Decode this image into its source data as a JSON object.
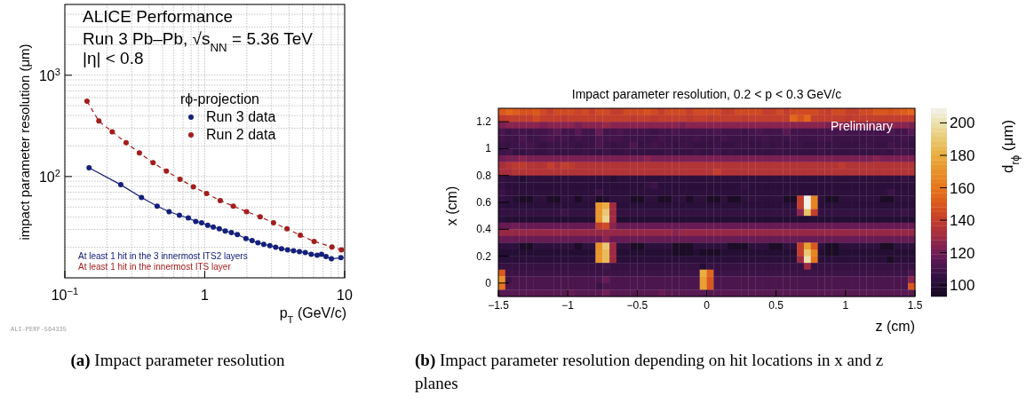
{
  "chart_data": [
    {
      "type": "line",
      "xlabel": "p$_{T}$ (GeV/c)",
      "ylabel": "impact parameter resolution (μm)",
      "legend_title": "rϕ-projection",
      "legend": "top right",
      "log": "xy",
      "grid": true,
      "marker": "circle",
      "xlim": [
        0.1,
        10
      ],
      "xticks": [
        {
          "value": 0.1,
          "label": "10$^{−1}$"
        },
        1,
        10
      ],
      "ylim": [
        10,
        5000
      ],
      "yticks": [
        {
          "value": 100,
          "label": "10$^{2}$"
        },
        {
          "value": 1000,
          "label": "10$^{3}$"
        }
      ],
      "series": [
        {
          "name": "Run 3 data",
          "color": "#14207a",
          "line_style": "solid",
          "x": [
            0.149,
            0.251,
            0.353,
            0.457,
            0.556,
            0.659,
            0.763,
            0.862,
            0.95,
            1.05,
            1.15,
            1.27,
            1.4,
            1.55,
            1.71,
            1.97,
            2.18,
            2.4,
            2.64,
            2.92,
            3.21,
            3.54,
            3.91,
            4.31,
            4.75,
            5.23,
            5.77,
            6.36,
            6.84,
            7.36,
            8.04,
            9.4
          ],
          "values": [
            122,
            83,
            62,
            51,
            45,
            41.5,
            39,
            36,
            35,
            33,
            31.7,
            30.5,
            29,
            28,
            26.7,
            24.4,
            23.3,
            22.2,
            21.4,
            20.8,
            20.1,
            19.4,
            18.9,
            18.5,
            18.1,
            17.8,
            17.1,
            16.7,
            17.1,
            16.2,
            15.4,
            15.8
          ]
        },
        {
          "name": "Run 2 data",
          "color": "#a31d1d",
          "line_style": "dashed",
          "x": [
            0.144,
            0.175,
            0.218,
            0.274,
            0.341,
            0.427,
            0.532,
            0.666,
            0.829,
            1.03,
            1.29,
            1.6,
            1.99,
            2.49,
            3.1,
            3.87,
            4.82,
            6.05,
            8.11,
            9.48
          ],
          "values": [
            553,
            353,
            277,
            216,
            171,
            137,
            113,
            94,
            79,
            68,
            58,
            51,
            45,
            40,
            35,
            30.5,
            26.3,
            22.9,
            20.2,
            18.9
          ]
        }
      ],
      "annotations": [
        "ALICE Performance",
        "Run 3 Pb–Pb, √s$_{NN}$ = 5.36 TeV",
        "|η| < 0.8",
        "At least 1 hit in the 3 innermost ITS2 layers",
        "At least 1 hit in the innermost ITS layer",
        "ALI-PERF-564335",
        "(a) Impact parameter resolution"
      ]
    },
    {
      "type": "heatmap",
      "title": "Impact parameter resolution, 0.2 < p < 0.3 GeV/c",
      "xlabel": "z (cm)",
      "ylabel": "x (cm)",
      "clabel": "d$_{rϕ}$ (μm)",
      "x": [
        -1.475,
        -1.425,
        -1.375,
        -1.325,
        -1.275,
        -1.225,
        -1.175,
        -1.125,
        -1.075,
        -1.025,
        -0.975,
        -0.925,
        -0.875,
        -0.825,
        -0.775,
        -0.725,
        -0.675,
        -0.625,
        -0.575,
        -0.525,
        -0.475,
        -0.425,
        -0.375,
        -0.325,
        -0.275,
        -0.225,
        -0.175,
        -0.125,
        -0.075,
        -0.025,
        0.025,
        0.075,
        0.125,
        0.175,
        0.225,
        0.275,
        0.325,
        0.375,
        0.425,
        0.475,
        0.525,
        0.575,
        0.625,
        0.675,
        0.725,
        0.775,
        0.825,
        0.875,
        0.925,
        0.975,
        1.025,
        1.075,
        1.125,
        1.175,
        1.225,
        1.275,
        1.325,
        1.375,
        1.425,
        1.475
      ],
      "y": [
        1.275,
        1.225,
        1.175,
        1.125,
        1.075,
        1.025,
        0.975,
        0.925,
        0.875,
        0.825,
        0.775,
        0.725,
        0.675,
        0.625,
        0.575,
        0.525,
        0.475,
        0.425,
        0.375,
        0.325,
        0.275,
        0.225,
        0.175,
        0.125,
        0.075,
        0.025,
        -0.025,
        -0.075
      ],
      "xlim": [
        -1.5,
        1.5
      ],
      "xticks": [
        {
          "value": -1.5,
          "label": "−1.5"
        },
        {
          "value": -1,
          "label": "−1"
        },
        {
          "value": -0.5,
          "label": "−0.5"
        },
        0,
        0.5,
        1,
        1.5
      ],
      "ylim": [
        -0.1,
        1.3
      ],
      "yticks": [
        0,
        0.2,
        0.4,
        0.6,
        0.8,
        1,
        1.2
      ],
      "clim": [
        93,
        209
      ],
      "cticks": [
        100,
        120,
        140,
        160,
        180,
        200
      ],
      "cells": [
        [
          150,
          155,
          152,
          148,
          148,
          150,
          145,
          140,
          145,
          145,
          145,
          142,
          145,
          140,
          145,
          145,
          140,
          140,
          145,
          145,
          145,
          148,
          145,
          140,
          145,
          145,
          145,
          140,
          145,
          145,
          145,
          145,
          140,
          140,
          145,
          145,
          145,
          145,
          140,
          140,
          145,
          140,
          145,
          145,
          145,
          145,
          142,
          140,
          145,
          145,
          140,
          140,
          145,
          145,
          150,
          150,
          148,
          150,
          152,
          155
        ],
        [
          138,
          140,
          140,
          140,
          140,
          145,
          140,
          140,
          140,
          138,
          140,
          140,
          140,
          140,
          140,
          140,
          140,
          140,
          140,
          138,
          140,
          140,
          138,
          140,
          140,
          140,
          140,
          138,
          140,
          140,
          138,
          140,
          140,
          140,
          140,
          138,
          140,
          140,
          140,
          140,
          140,
          140,
          155,
          148,
          155,
          140,
          140,
          140,
          140,
          140,
          138,
          140,
          140,
          140,
          140,
          140,
          140,
          140,
          140,
          140
        ],
        [
          122,
          125,
          125,
          125,
          125,
          125,
          122,
          125,
          125,
          125,
          125,
          122,
          125,
          125,
          125,
          128,
          125,
          125,
          125,
          125,
          125,
          125,
          125,
          125,
          125,
          125,
          122,
          125,
          125,
          125,
          125,
          125,
          125,
          125,
          125,
          125,
          125,
          125,
          125,
          125,
          125,
          125,
          125,
          125,
          125,
          125,
          125,
          122,
          125,
          125,
          125,
          125,
          125,
          125,
          125,
          125,
          125,
          125,
          125,
          122
        ],
        [
          112,
          108,
          110,
          110,
          108,
          110,
          110,
          112,
          115,
          110,
          110,
          115,
          110,
          110,
          118,
          110,
          110,
          112,
          110,
          110,
          110,
          110,
          108,
          110,
          110,
          112,
          110,
          110,
          110,
          110,
          110,
          112,
          110,
          110,
          110,
          108,
          110,
          112,
          110,
          110,
          110,
          115,
          110,
          110,
          110,
          110,
          110,
          110,
          110,
          112,
          110,
          110,
          110,
          110,
          110,
          110,
          112,
          110,
          110,
          115
        ],
        [
          110,
          108,
          108,
          112,
          108,
          108,
          110,
          112,
          110,
          110,
          108,
          110,
          108,
          108,
          112,
          110,
          110,
          110,
          108,
          108,
          108,
          108,
          108,
          110,
          108,
          108,
          108,
          108,
          110,
          108,
          108,
          108,
          110,
          108,
          108,
          108,
          108,
          108,
          110,
          108,
          108,
          108,
          110,
          108,
          108,
          108,
          110,
          110,
          108,
          108,
          108,
          108,
          108,
          108,
          108,
          108,
          108,
          108,
          110,
          108
        ],
        [
          108,
          106,
          108,
          110,
          110,
          108,
          106,
          108,
          108,
          108,
          108,
          106,
          108,
          108,
          112,
          108,
          106,
          108,
          108,
          112,
          106,
          108,
          110,
          108,
          108,
          106,
          108,
          108,
          106,
          106,
          106,
          108,
          106,
          106,
          108,
          108,
          106,
          106,
          108,
          106,
          108,
          106,
          108,
          108,
          106,
          106,
          108,
          106,
          108,
          106,
          106,
          106,
          108,
          108,
          106,
          106,
          110,
          108,
          108,
          106
        ],
        [
          108,
          110,
          106,
          106,
          108,
          106,
          106,
          108,
          106,
          106,
          106,
          106,
          108,
          106,
          106,
          108,
          106,
          106,
          108,
          106,
          106,
          106,
          106,
          106,
          108,
          106,
          106,
          106,
          108,
          106,
          106,
          110,
          106,
          108,
          106,
          106,
          106,
          106,
          106,
          106,
          108,
          106,
          106,
          106,
          106,
          106,
          108,
          106,
          106,
          106,
          106,
          106,
          106,
          106,
          106,
          108,
          106,
          110,
          110,
          108
        ],
        [
          120,
          122,
          122,
          125,
          122,
          122,
          122,
          122,
          122,
          122,
          122,
          122,
          122,
          122,
          122,
          122,
          122,
          122,
          122,
          122,
          122,
          125,
          122,
          122,
          122,
          122,
          122,
          122,
          122,
          122,
          122,
          122,
          122,
          122,
          122,
          122,
          122,
          122,
          122,
          122,
          122,
          122,
          122,
          122,
          122,
          122,
          122,
          122,
          122,
          122,
          122,
          122,
          122,
          122,
          125,
          122,
          122,
          122,
          122,
          122
        ],
        [
          132,
          135,
          138,
          138,
          135,
          135,
          135,
          140,
          135,
          140,
          138,
          135,
          135,
          135,
          135,
          135,
          135,
          135,
          135,
          135,
          135,
          135,
          135,
          135,
          135,
          135,
          135,
          135,
          135,
          135,
          135,
          135,
          135,
          135,
          135,
          135,
          135,
          135,
          135,
          135,
          135,
          135,
          135,
          135,
          135,
          135,
          135,
          135,
          135,
          138,
          135,
          135,
          135,
          135,
          135,
          135,
          135,
          135,
          135,
          135
        ],
        [
          132,
          132,
          135,
          135,
          135,
          135,
          135,
          135,
          135,
          135,
          135,
          135,
          135,
          135,
          135,
          135,
          135,
          135,
          135,
          135,
          135,
          135,
          135,
          135,
          135,
          135,
          135,
          135,
          135,
          135,
          135,
          140,
          135,
          135,
          135,
          135,
          135,
          135,
          135,
          135,
          135,
          135,
          135,
          135,
          135,
          135,
          135,
          135,
          135,
          135,
          135,
          135,
          135,
          135,
          135,
          135,
          135,
          135,
          135,
          135
        ],
        [
          105,
          103,
          103,
          100,
          103,
          103,
          103,
          103,
          103,
          103,
          103,
          103,
          103,
          103,
          103,
          103,
          100,
          103,
          103,
          103,
          103,
          103,
          103,
          103,
          103,
          103,
          103,
          103,
          103,
          103,
          103,
          103,
          103,
          103,
          103,
          103,
          103,
          103,
          103,
          103,
          103,
          103,
          103,
          103,
          103,
          103,
          103,
          103,
          103,
          103,
          103,
          103,
          103,
          103,
          103,
          103,
          103,
          103,
          105,
          103
        ],
        [
          105,
          102,
          102,
          102,
          102,
          102,
          102,
          102,
          102,
          102,
          102,
          102,
          102,
          102,
          102,
          102,
          102,
          102,
          102,
          102,
          102,
          105,
          108,
          102,
          102,
          102,
          102,
          102,
          102,
          102,
          102,
          102,
          102,
          102,
          102,
          105,
          102,
          102,
          102,
          102,
          102,
          102,
          102,
          102,
          102,
          102,
          102,
          102,
          102,
          102,
          102,
          102,
          102,
          102,
          102,
          102,
          102,
          102,
          102,
          102
        ],
        [
          108,
          103,
          103,
          103,
          103,
          103,
          103,
          103,
          103,
          103,
          103,
          103,
          103,
          103,
          108,
          103,
          103,
          103,
          103,
          103,
          103,
          103,
          103,
          103,
          103,
          103,
          103,
          103,
          103,
          103,
          103,
          103,
          103,
          103,
          103,
          103,
          103,
          103,
          103,
          103,
          103,
          103,
          103,
          103,
          103,
          103,
          103,
          103,
          103,
          103,
          103,
          103,
          103,
          103,
          103,
          103,
          108,
          103,
          103,
          103
        ],
        [
          105,
          103,
          100,
          96,
          96,
          103,
          103,
          96,
          96,
          103,
          103,
          96,
          103,
          103,
          96,
          100,
          103,
          103,
          103,
          96,
          96,
          103,
          103,
          96,
          96,
          103,
          103,
          96,
          103,
          103,
          96,
          96,
          103,
          96,
          96,
          103,
          103,
          103,
          103,
          103,
          103,
          96,
          96,
          140,
          208,
          165,
          103,
          96,
          96,
          103,
          103,
          103,
          103,
          103,
          103,
          96,
          96,
          103,
          103,
          103
        ],
        [
          103,
          102,
          102,
          102,
          102,
          102,
          102,
          102,
          102,
          102,
          102,
          102,
          102,
          102,
          172,
          180,
          130,
          102,
          102,
          102,
          102,
          102,
          102,
          102,
          102,
          102,
          102,
          102,
          102,
          102,
          102,
          102,
          102,
          102,
          102,
          102,
          102,
          102,
          102,
          102,
          102,
          102,
          102,
          140,
          208,
          165,
          102,
          102,
          102,
          102,
          102,
          102,
          102,
          102,
          102,
          102,
          102,
          102,
          102,
          102
        ],
        [
          105,
          105,
          105,
          105,
          105,
          105,
          105,
          105,
          105,
          108,
          105,
          105,
          105,
          105,
          172,
          190,
          130,
          105,
          105,
          105,
          105,
          105,
          105,
          105,
          105,
          105,
          105,
          105,
          105,
          105,
          105,
          105,
          105,
          105,
          105,
          105,
          105,
          105,
          105,
          105,
          105,
          105,
          105,
          125,
          188,
          140,
          105,
          105,
          105,
          105,
          105,
          105,
          105,
          105,
          105,
          105,
          105,
          105,
          108,
          105
        ],
        [
          102,
          100,
          100,
          100,
          100,
          100,
          100,
          100,
          100,
          100,
          100,
          100,
          100,
          100,
          172,
          195,
          130,
          100,
          100,
          100,
          100,
          100,
          100,
          100,
          100,
          100,
          100,
          100,
          100,
          100,
          100,
          100,
          100,
          100,
          100,
          100,
          100,
          100,
          100,
          100,
          100,
          100,
          100,
          100,
          100,
          100,
          100,
          100,
          100,
          100,
          100,
          100,
          100,
          100,
          100,
          100,
          100,
          100,
          100,
          100
        ],
        [
          118,
          118,
          120,
          118,
          118,
          118,
          118,
          118,
          118,
          118,
          118,
          118,
          118,
          118,
          140,
          145,
          125,
          118,
          118,
          118,
          118,
          118,
          118,
          118,
          118,
          118,
          118,
          118,
          118,
          118,
          118,
          118,
          118,
          118,
          118,
          118,
          118,
          118,
          118,
          118,
          118,
          118,
          118,
          118,
          118,
          118,
          118,
          118,
          118,
          118,
          118,
          118,
          118,
          118,
          118,
          118,
          118,
          118,
          118,
          118
        ],
        [
          128,
          128,
          128,
          128,
          128,
          128,
          128,
          128,
          128,
          128,
          128,
          128,
          128,
          128,
          128,
          128,
          128,
          128,
          128,
          128,
          128,
          128,
          128,
          128,
          128,
          125,
          128,
          128,
          128,
          128,
          128,
          128,
          128,
          128,
          128,
          128,
          128,
          128,
          128,
          128,
          128,
          128,
          128,
          128,
          128,
          128,
          128,
          128,
          128,
          128,
          128,
          128,
          128,
          128,
          128,
          128,
          128,
          128,
          128,
          128
        ],
        [
          118,
          118,
          118,
          118,
          118,
          118,
          118,
          118,
          118,
          118,
          118,
          118,
          118,
          118,
          118,
          125,
          118,
          118,
          118,
          118,
          118,
          118,
          118,
          118,
          118,
          118,
          118,
          118,
          118,
          118,
          118,
          118,
          118,
          118,
          118,
          118,
          118,
          118,
          118,
          118,
          118,
          118,
          118,
          118,
          118,
          118,
          118,
          118,
          118,
          118,
          118,
          118,
          118,
          118,
          118,
          118,
          118,
          118,
          118,
          118
        ],
        [
          103,
          103,
          103,
          96,
          96,
          103,
          103,
          103,
          103,
          103,
          103,
          96,
          103,
          103,
          170,
          190,
          130,
          103,
          103,
          96,
          96,
          103,
          103,
          103,
          103,
          96,
          96,
          96,
          103,
          103,
          103,
          103,
          103,
          96,
          96,
          96,
          103,
          103,
          103,
          96,
          96,
          103,
          103,
          140,
          175,
          150,
          103,
          96,
          96,
          103,
          103,
          103,
          103,
          103,
          103,
          96,
          96,
          103,
          103,
          103
        ],
        [
          100,
          100,
          100,
          100,
          100,
          100,
          100,
          100,
          100,
          100,
          100,
          100,
          100,
          100,
          172,
          185,
          130,
          100,
          100,
          100,
          100,
          100,
          100,
          100,
          100,
          96,
          96,
          96,
          100,
          96,
          96,
          96,
          100,
          100,
          100,
          100,
          100,
          100,
          100,
          100,
          100,
          100,
          100,
          140,
          190,
          165,
          100,
          96,
          96,
          100,
          100,
          100,
          100,
          100,
          100,
          100,
          100,
          100,
          100,
          100
        ],
        [
          102,
          102,
          102,
          102,
          102,
          102,
          102,
          102,
          102,
          102,
          102,
          102,
          102,
          102,
          172,
          185,
          130,
          102,
          102,
          102,
          102,
          102,
          102,
          102,
          102,
          102,
          102,
          102,
          102,
          102,
          102,
          102,
          102,
          102,
          102,
          102,
          102,
          102,
          102,
          102,
          102,
          102,
          102,
          130,
          200,
          160,
          102,
          102,
          102,
          102,
          102,
          102,
          102,
          102,
          102,
          102,
          96,
          102,
          102,
          102
        ],
        [
          106,
          106,
          106,
          106,
          106,
          106,
          106,
          106,
          106,
          106,
          106,
          106,
          106,
          106,
          106,
          110,
          106,
          106,
          106,
          106,
          106,
          106,
          106,
          106,
          106,
          106,
          106,
          106,
          106,
          100,
          106,
          106,
          106,
          106,
          106,
          106,
          106,
          106,
          106,
          106,
          106,
          106,
          106,
          106,
          130,
          106,
          106,
          106,
          106,
          106,
          106,
          106,
          106,
          106,
          106,
          106,
          106,
          106,
          106,
          106
        ],
        [
          150,
          108,
          108,
          108,
          108,
          108,
          108,
          108,
          108,
          108,
          108,
          108,
          108,
          108,
          108,
          108,
          108,
          108,
          108,
          108,
          108,
          108,
          108,
          108,
          108,
          108,
          108,
          108,
          108,
          180,
          155,
          108,
          108,
          108,
          108,
          108,
          108,
          108,
          108,
          108,
          108,
          108,
          108,
          108,
          108,
          108,
          108,
          108,
          108,
          108,
          108,
          108,
          108,
          108,
          108,
          108,
          108,
          108,
          108,
          112
        ],
        [
          170,
          108,
          112,
          112,
          112,
          112,
          112,
          112,
          112,
          112,
          112,
          112,
          112,
          112,
          112,
          118,
          112,
          112,
          112,
          112,
          112,
          112,
          112,
          112,
          112,
          112,
          112,
          112,
          112,
          175,
          150,
          112,
          112,
          112,
          112,
          112,
          112,
          112,
          112,
          112,
          112,
          112,
          112,
          112,
          112,
          112,
          112,
          112,
          112,
          112,
          112,
          112,
          112,
          112,
          112,
          112,
          112,
          112,
          112,
          125
        ],
        [
          160,
          112,
          112,
          112,
          112,
          112,
          112,
          112,
          112,
          112,
          112,
          112,
          112,
          112,
          108,
          112,
          112,
          112,
          112,
          112,
          112,
          112,
          112,
          112,
          112,
          112,
          112,
          112,
          112,
          175,
          150,
          112,
          112,
          112,
          112,
          112,
          112,
          112,
          112,
          112,
          112,
          112,
          112,
          112,
          112,
          112,
          112,
          112,
          112,
          112,
          112,
          112,
          112,
          112,
          112,
          112,
          112,
          112,
          112,
          150
        ],
        [
          115,
          115,
          115,
          115,
          115,
          115,
          115,
          115,
          115,
          115,
          118,
          115,
          115,
          115,
          115,
          120,
          115,
          115,
          115,
          115,
          115,
          115,
          115,
          118,
          115,
          115,
          115,
          115,
          115,
          115,
          115,
          115,
          115,
          115,
          115,
          115,
          115,
          115,
          115,
          115,
          115,
          115,
          115,
          115,
          115,
          115,
          115,
          115,
          115,
          115,
          115,
          115,
          115,
          115,
          115,
          115,
          115,
          115,
          115,
          115
        ]
      ],
      "annotations": [
        "Preliminary",
        "(b) Impact parameter resolution depending on hit locations in x and z planes"
      ]
    }
  ]
}
